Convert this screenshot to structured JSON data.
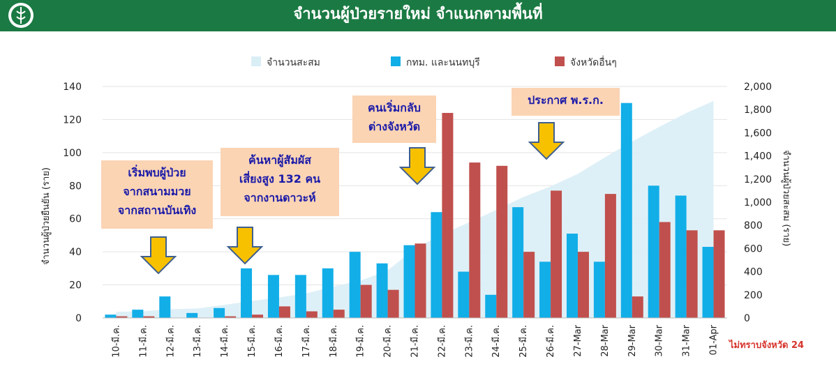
{
  "header": {
    "title": "จำนวนผู้ป่วยรายใหม่ จำแนกตามพื้นที่"
  },
  "colors": {
    "header_bg": "#1b7a43",
    "bkk": "#12aee8",
    "other": "#c0504d",
    "cumulative": "#daeef6",
    "callout_bg": "#fbd4b4",
    "callout_text": "#1a1aa8",
    "arrow": "#f7c100",
    "note": "#d6342c"
  },
  "chart_data": {
    "type": "bar",
    "categories": [
      "10-มี.ค.",
      "11-มี.ค.",
      "12-มี.ค.",
      "13-มี.ค.",
      "14-มี.ค.",
      "15-มี.ค.",
      "16-มี.ค.",
      "17-มี.ค.",
      "18-มี.ค.",
      "19-มี.ค.",
      "20-มี.ค.",
      "21-มี.ค.",
      "22-มี.ค.",
      "23-มี.ค.",
      "24-มี.ค.",
      "25-มี.ค.",
      "26-มี.ค.",
      "27-Mar",
      "28-Mar",
      "29-Mar",
      "30-Mar",
      "31-Mar",
      "01-Apr"
    ],
    "series": [
      {
        "name": "กทม. และนนทบุรี",
        "type": "bar",
        "axis": "left",
        "values": [
          2,
          5,
          13,
          3,
          6,
          30,
          26,
          26,
          30,
          40,
          33,
          44,
          64,
          28,
          14,
          67,
          34,
          51,
          34,
          130,
          80,
          74,
          43
        ]
      },
      {
        "name": "จังหวัดอื่นๆ",
        "type": "bar",
        "axis": "left",
        "values": [
          1,
          1,
          0,
          0,
          1,
          2,
          7,
          4,
          5,
          20,
          17,
          45,
          124,
          94,
          92,
          40,
          77,
          40,
          75,
          13,
          58,
          53,
          53
        ]
      },
      {
        "name": "จำนวนสะสม",
        "type": "area",
        "axis": "right",
        "values": [
          53,
          59,
          75,
          82,
          114,
          147,
          177,
          212,
          272,
          322,
          411,
          599,
          721,
          827,
          934,
          1045,
          1136,
          1245,
          1388,
          1524,
          1651,
          1771,
          1875
        ]
      }
    ],
    "yleft": {
      "label": "จำนวนผู้ป่วยยืนยัน  (ราย)",
      "ticks": [
        "0",
        "20",
        "40",
        "60",
        "80",
        "100",
        "120",
        "140"
      ],
      "lim": [
        0,
        140
      ]
    },
    "yright": {
      "label": "จำนวนผู้ป่วยสะสม  (ราย)",
      "ticks": [
        "0",
        "200",
        "400",
        "600",
        "800",
        "1,000",
        "1,200",
        "1,400",
        "1,600",
        "1,800",
        "2,000"
      ],
      "lim": [
        0,
        2000
      ]
    },
    "legend": [
      "จำนวนสะสม",
      "กทม. และนนทบุรี",
      "จังหวัดอื่นๆ"
    ],
    "legend_position": "top",
    "grid": true
  },
  "callouts": [
    {
      "lines": [
        "เริ่มพบผู้ป่วย",
        "จากสนามมวย",
        "จากสถานบันเทิง"
      ]
    },
    {
      "lines": [
        "ค้นหาผู้สัมผัส",
        "เสี่ยงสูง 132 คน",
        "จากงานดาวะห์"
      ]
    },
    {
      "lines": [
        "คนเริ่มกลับ",
        "ต่างจังหวัด"
      ]
    },
    {
      "lines": [
        "ประกาศ พ.ร.ก."
      ]
    }
  ],
  "note": "ไม่ทราบจังหวัด 24"
}
